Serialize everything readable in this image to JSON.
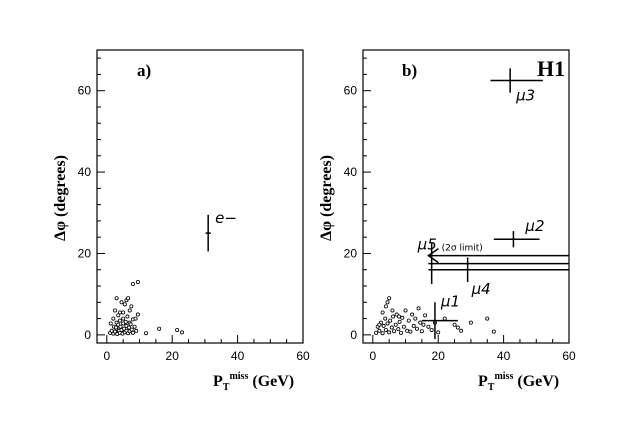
{
  "chart_data": [
    {
      "type": "scatter",
      "panel": "a)",
      "xlabel": "P_T^miss (GeV)",
      "xlabel_main": "P",
      "xlabel_sub": "T",
      "xlabel_sup": "miss",
      "xlabel_unit": " (GeV)",
      "ylabel": "Δφ (degrees)",
      "xlim": [
        -3,
        60
      ],
      "ylim": [
        -2,
        70
      ],
      "xticks": [
        "0",
        "20",
        "40",
        "60"
      ],
      "yticks": [
        "0",
        "20",
        "40",
        "60"
      ],
      "background_points": [
        [
          1,
          0.5
        ],
        [
          1.5,
          1
        ],
        [
          2,
          0.3
        ],
        [
          2.2,
          2
        ],
        [
          2.5,
          0.8
        ],
        [
          3,
          1.5
        ],
        [
          3,
          3
        ],
        [
          3.2,
          0.2
        ],
        [
          3.5,
          2.5
        ],
        [
          3.7,
          1
        ],
        [
          4,
          0.5
        ],
        [
          4,
          3.5
        ],
        [
          4.2,
          2
        ],
        [
          4.5,
          1.2
        ],
        [
          4.8,
          0.3
        ],
        [
          5,
          2.8
        ],
        [
          5,
          4
        ],
        [
          5.3,
          1.5
        ],
        [
          5.5,
          0.6
        ],
        [
          5.8,
          3.2
        ],
        [
          6,
          1
        ],
        [
          6,
          2.2
        ],
        [
          6.3,
          4.5
        ],
        [
          6.5,
          0.4
        ],
        [
          6.8,
          1.8
        ],
        [
          7,
          3
        ],
        [
          7,
          0.9
        ],
        [
          7.3,
          2.6
        ],
        [
          7.6,
          1.3
        ],
        [
          8,
          0.5
        ],
        [
          8,
          3.8
        ],
        [
          8.5,
          2
        ],
        [
          8.8,
          4
        ],
        [
          9,
          1
        ],
        [
          9.5,
          5
        ],
        [
          2,
          4
        ],
        [
          2.5,
          6
        ],
        [
          3,
          9
        ],
        [
          4.5,
          8
        ],
        [
          5.5,
          7.5
        ],
        [
          6,
          8.5
        ],
        [
          6.5,
          9
        ],
        [
          7,
          6
        ],
        [
          4,
          5.5
        ],
        [
          3.5,
          4.8
        ],
        [
          8,
          12.5
        ],
        [
          9.5,
          13
        ],
        [
          16,
          1.5
        ],
        [
          21.5,
          1.2
        ],
        [
          23,
          0.6
        ],
        [
          12,
          0.4
        ],
        [
          1.2,
          2.8
        ],
        [
          2.8,
          1.8
        ],
        [
          5,
          5.5
        ],
        [
          7.5,
          7
        ]
      ],
      "candidates": [
        {
          "label": "e−",
          "x": 31,
          "y": 25,
          "xerr": 0.8,
          "yerr": 4.5
        }
      ]
    },
    {
      "type": "scatter",
      "panel": "b)",
      "experiment": "H1",
      "xlabel": "P_T^miss (GeV)",
      "xlabel_main": "P",
      "xlabel_sub": "T",
      "xlabel_sup": "miss",
      "xlabel_unit": " (GeV)",
      "ylabel": "Δφ (degrees)",
      "xlim": [
        -3,
        60
      ],
      "ylim": [
        -2,
        70
      ],
      "xticks": [
        "0",
        "20",
        "40",
        "60"
      ],
      "yticks": [
        "0",
        "20",
        "40",
        "60"
      ],
      "background_points": [
        [
          1,
          0.5
        ],
        [
          1.5,
          2
        ],
        [
          2,
          1
        ],
        [
          2.5,
          3
        ],
        [
          3,
          0.4
        ],
        [
          3.3,
          2.2
        ],
        [
          3.8,
          4
        ],
        [
          4,
          1.2
        ],
        [
          4.5,
          2.8
        ],
        [
          5,
          0.6
        ],
        [
          5.3,
          3.5
        ],
        [
          5.8,
          1.8
        ],
        [
          6.2,
          4.5
        ],
        [
          6.5,
          0.9
        ],
        [
          7,
          2.5
        ],
        [
          7.3,
          5
        ],
        [
          7.8,
          1.4
        ],
        [
          8.2,
          3.2
        ],
        [
          8.6,
          0.5
        ],
        [
          9,
          4.2
        ],
        [
          9.5,
          2
        ],
        [
          10,
          6
        ],
        [
          10.5,
          1
        ],
        [
          11,
          3.5
        ],
        [
          11.5,
          0.8
        ],
        [
          12,
          5
        ],
        [
          12.5,
          2.2
        ],
        [
          13,
          4
        ],
        [
          13.5,
          1.5
        ],
        [
          14,
          6.5
        ],
        [
          14.5,
          3
        ],
        [
          15,
          0.9
        ],
        [
          15.5,
          2.5
        ],
        [
          16,
          4.8
        ],
        [
          17,
          2
        ],
        [
          18,
          1.2
        ],
        [
          19,
          3
        ],
        [
          20,
          0.6
        ],
        [
          3,
          5.5
        ],
        [
          4,
          7
        ],
        [
          5,
          9
        ],
        [
          6,
          6
        ],
        [
          4.5,
          8
        ],
        [
          8,
          4.5
        ],
        [
          22,
          4
        ],
        [
          25,
          2.5
        ],
        [
          27,
          1
        ],
        [
          30,
          3
        ],
        [
          35,
          4
        ],
        [
          37,
          0.8
        ],
        [
          26,
          1.8
        ],
        [
          2,
          2.5
        ]
      ],
      "candidates": [
        {
          "label": "μ1",
          "x": 19,
          "y": 3.5,
          "xerr_low": 4,
          "xerr_high": 7,
          "yerr": 4.5
        },
        {
          "label": "μ2",
          "x": 43,
          "y": 23.5,
          "xerr_low": 6,
          "xerr_high": 8,
          "yerr": 2
        },
        {
          "label": "μ3",
          "x": 42,
          "y": 62.5,
          "xerr_low": 6,
          "xerr_high": 10,
          "yerr": 3
        },
        {
          "label": "μ4",
          "x": 29,
          "y": 16,
          "xerr_low": 12,
          "xerr_high": 31,
          "yerr": 3
        },
        {
          "label": "μ5",
          "x": 18,
          "y": 17.5,
          "xerr_low": 1,
          "xerr_high": 42,
          "yerr": 5,
          "arrow_left": true,
          "note": "(2σ limit)"
        }
      ]
    }
  ]
}
